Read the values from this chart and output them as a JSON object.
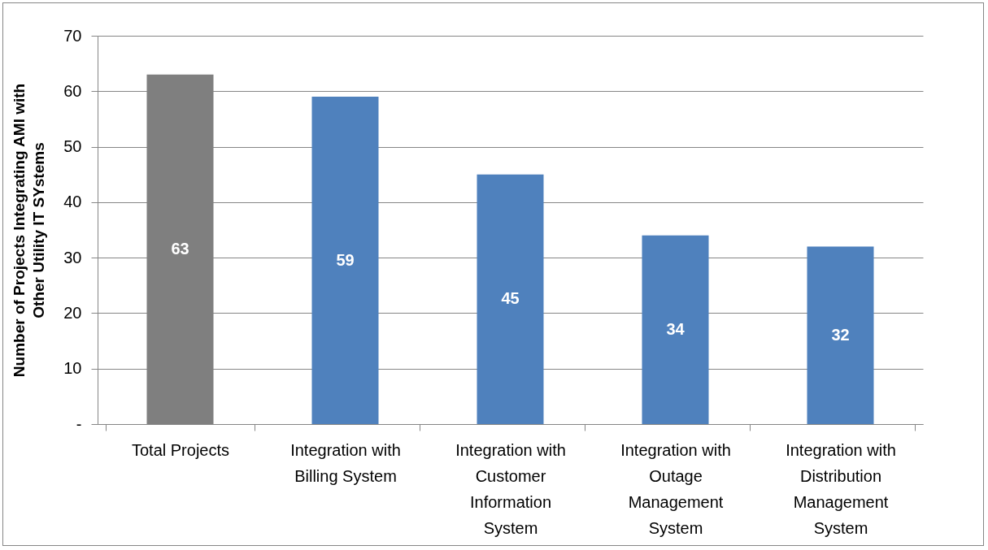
{
  "chart_data": {
    "type": "bar",
    "ylabel": "Number of Projects Integrating AMI with Other Utility IT SYstems",
    "categories": [
      "Total Projects",
      "Integration with Billing System",
      "Integration with Customer Information System",
      "Integration with Outage Management System",
      "Integration with Distribution Management System"
    ],
    "values": [
      63,
      59,
      45,
      34,
      32
    ],
    "colors": [
      "#7f7f7f",
      "#4f81bd",
      "#4f81bd",
      "#4f81bd",
      "#4f81bd"
    ],
    "ylim": [
      0,
      70
    ],
    "yticks": [
      {
        "value": 0,
        "label": "-"
      },
      10,
      20,
      30,
      40,
      50,
      60,
      70
    ],
    "grid": "y",
    "data_labels": true
  }
}
